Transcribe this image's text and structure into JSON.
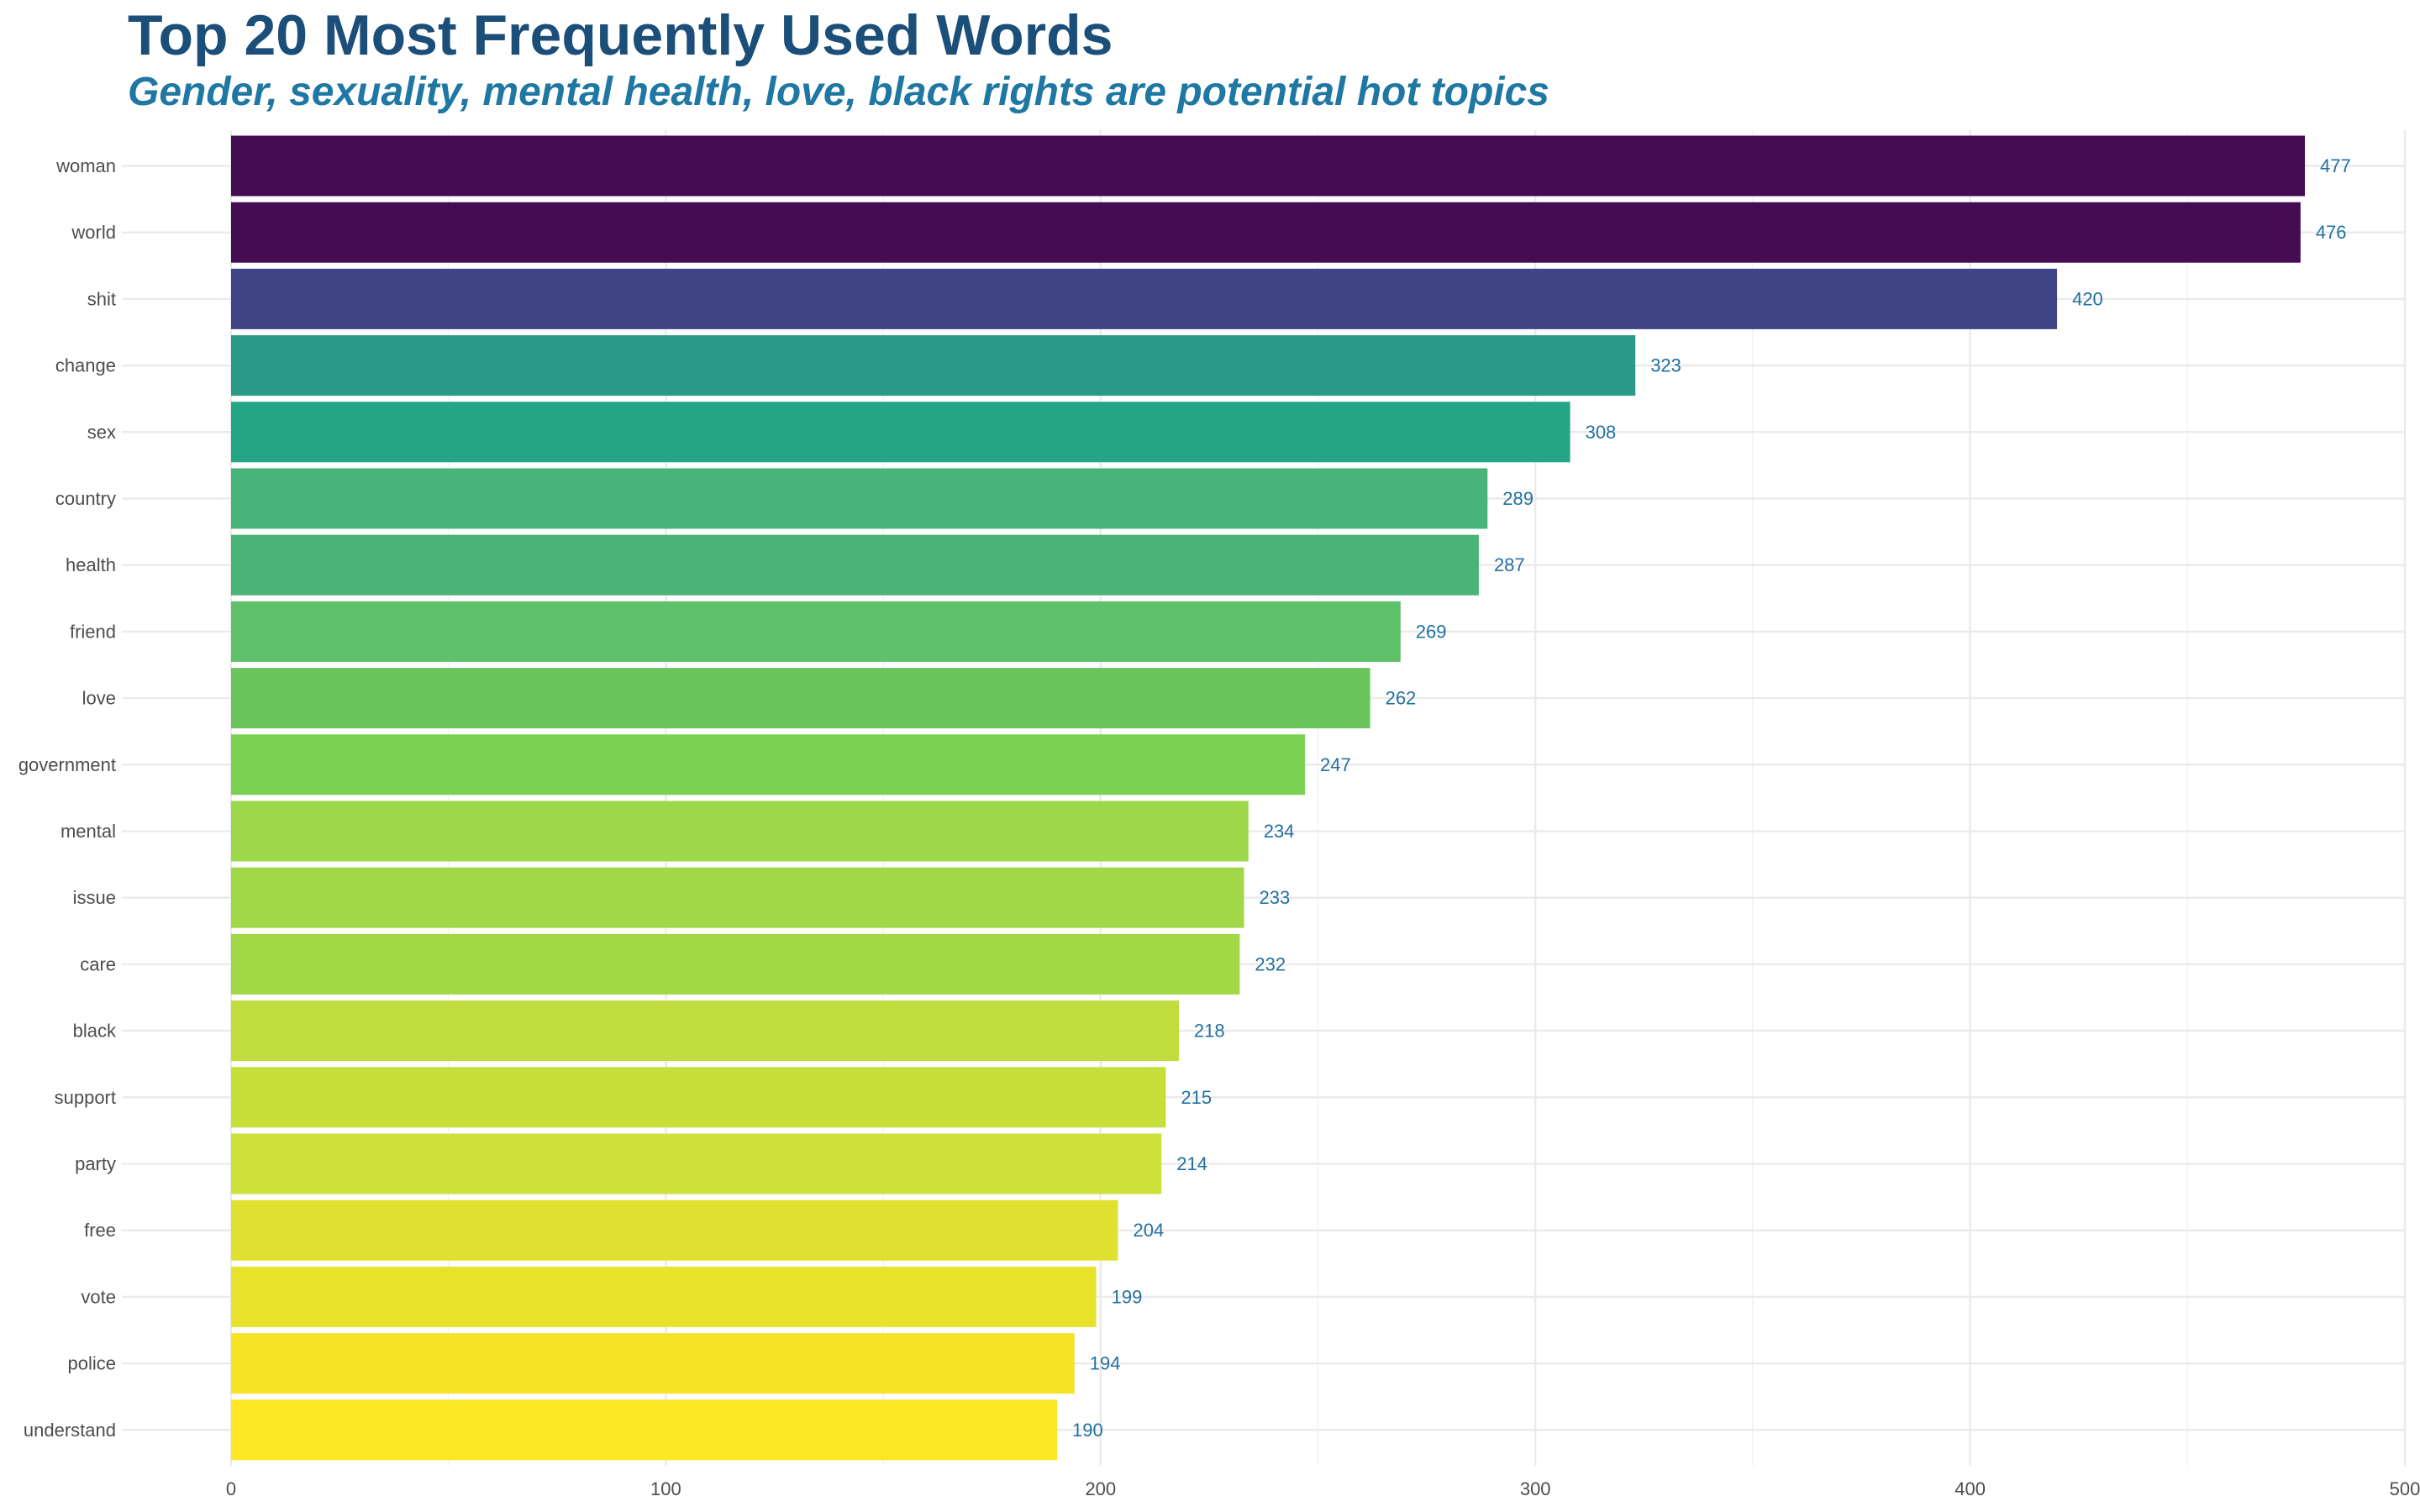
{
  "title": "Top 20 Most Frequently Used Words",
  "subtitle": "Gender, sexuality, mental health, love, black rights are potential hot topics",
  "chart_data": {
    "type": "bar",
    "orientation": "horizontal",
    "title": "Top 20 Most Frequently Used Words",
    "subtitle": "Gender, sexuality, mental health, love, black rights are potential hot topics",
    "xlabel": "",
    "ylabel": "",
    "xlim": [
      0,
      500
    ],
    "x_ticks": [
      0,
      100,
      200,
      300,
      400,
      500
    ],
    "grid": true,
    "legend": "none",
    "categories": [
      "woman",
      "world",
      "shit",
      "change",
      "sex",
      "country",
      "health",
      "friend",
      "love",
      "government",
      "mental",
      "issue",
      "care",
      "black",
      "support",
      "party",
      "free",
      "vote",
      "police",
      "understand"
    ],
    "values": [
      477,
      476,
      420,
      323,
      308,
      289,
      287,
      269,
      262,
      247,
      234,
      233,
      232,
      218,
      215,
      214,
      204,
      199,
      194,
      190
    ],
    "colors": [
      "#440c53",
      "#440c53",
      "#414487",
      "#2a9a88",
      "#23a586",
      "#48b479",
      "#4ab477",
      "#5fc169",
      "#6cc45f",
      "#7ad151",
      "#9dd84a",
      "#a0d848",
      "#a2d846",
      "#c1dc3d",
      "#c6df3a",
      "#cde13b",
      "#e0e031",
      "#e7e32c",
      "#f6e325",
      "#fde725"
    ],
    "label_color": "#2470a0"
  }
}
